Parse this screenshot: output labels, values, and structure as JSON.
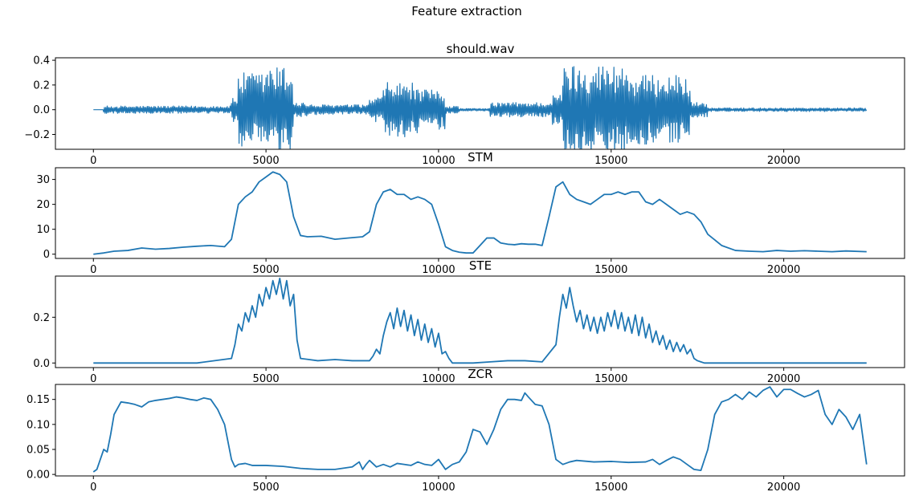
{
  "figure_title": "Feature extraction",
  "colors": {
    "line": "#1f77b4",
    "axis": "#000000",
    "background": "#ffffff"
  },
  "chart_data": [
    {
      "type": "line",
      "title": "should.wav",
      "xlabel": "",
      "ylabel": "",
      "xlim": [
        -1100,
        23500
      ],
      "ylim": [
        -0.32,
        0.42
      ],
      "xticks": [
        0,
        5000,
        10000,
        15000,
        20000
      ],
      "yticks": [
        -0.2,
        0.0,
        0.2,
        0.4
      ],
      "ytick_labels": [
        "−0.2",
        "0.0",
        "0.2",
        "0.4"
      ],
      "grid": false,
      "legend": "none",
      "series": [
        {
          "kind": "waveform",
          "x_range": [
            0,
            22400
          ],
          "segments": [
            {
              "x": [
                0,
                300
              ],
              "amp": 0.0
            },
            {
              "x": [
                300,
                4000
              ],
              "amp": 0.03
            },
            {
              "x": [
                4000,
                4200
              ],
              "amp": 0.1
            },
            {
              "x": [
                4200,
                5000
              ],
              "amp": 0.3
            },
            {
              "x": [
                5000,
                5800
              ],
              "amp": 0.35
            },
            {
              "x": [
                5800,
                6200
              ],
              "amp": 0.06
            },
            {
              "x": [
                6200,
                8000
              ],
              "amp": 0.04
            },
            {
              "x": [
                8000,
                8400
              ],
              "amp": 0.1
            },
            {
              "x": [
                8400,
                9400
              ],
              "amp": 0.22
            },
            {
              "x": [
                9400,
                10200
              ],
              "amp": 0.16
            },
            {
              "x": [
                10200,
                10600
              ],
              "amp": 0.03
            },
            {
              "x": [
                10600,
                11500
              ],
              "amp": 0.01
            },
            {
              "x": [
                11500,
                13300
              ],
              "amp": 0.06
            },
            {
              "x": [
                13300,
                13600
              ],
              "amp": 0.12
            },
            {
              "x": [
                13600,
                15500
              ],
              "amp": 0.37
            },
            {
              "x": [
                15500,
                17300
              ],
              "amp": 0.28
            },
            {
              "x": [
                17300,
                17800
              ],
              "amp": 0.06
            },
            {
              "x": [
                17800,
                22400
              ],
              "amp": 0.015
            }
          ]
        }
      ]
    },
    {
      "type": "line",
      "title": "STM",
      "xlabel": "",
      "ylabel": "",
      "xlim": [
        -1100,
        23500
      ],
      "ylim": [
        -1.7,
        34.7
      ],
      "xticks": [
        0,
        5000,
        10000,
        15000,
        20000
      ],
      "yticks": [
        0,
        10,
        20,
        30
      ],
      "ytick_labels": [
        "0",
        "10",
        "20",
        "30"
      ],
      "grid": false,
      "legend": "none",
      "series": [
        {
          "x": [
            0,
            300,
            600,
            1000,
            1400,
            1800,
            2200,
            2600,
            3000,
            3400,
            3800,
            4000,
            4200,
            4400,
            4600,
            4800,
            5000,
            5200,
            5400,
            5600,
            5800,
            6000,
            6200,
            6600,
            7000,
            7400,
            7800,
            8000,
            8200,
            8400,
            8600,
            8800,
            9000,
            9200,
            9400,
            9600,
            9800,
            10000,
            10200,
            10400,
            10600,
            10800,
            11000,
            11200,
            11400,
            11600,
            11800,
            12000,
            12200,
            12400,
            12600,
            12800,
            13000,
            13200,
            13400,
            13600,
            13800,
            14000,
            14200,
            14400,
            14600,
            14800,
            15000,
            15200,
            15400,
            15600,
            15800,
            16000,
            16200,
            16400,
            16600,
            16800,
            17000,
            17200,
            17400,
            17600,
            17800,
            18200,
            18600,
            19000,
            19400,
            19800,
            20200,
            20600,
            21000,
            21400,
            21800,
            22400
          ],
          "y": [
            0,
            0.5,
            1.2,
            1.5,
            2.5,
            2.0,
            2.3,
            2.8,
            3.2,
            3.5,
            3.0,
            6,
            20,
            23,
            25,
            29,
            31,
            33,
            32,
            29,
            15,
            7.5,
            7,
            7.2,
            6,
            6.5,
            7,
            9,
            20,
            25,
            26,
            24,
            24,
            22,
            23,
            22,
            20,
            12,
            3,
            1.5,
            0.8,
            0.5,
            0.5,
            3.5,
            6.5,
            6.5,
            4.5,
            4.0,
            3.8,
            4.2,
            4.0,
            4.0,
            3.5,
            15,
            27,
            29,
            24,
            22,
            21,
            20,
            22,
            24,
            24,
            25,
            24,
            25,
            25,
            21,
            20,
            22,
            20,
            18,
            16,
            17,
            16,
            13,
            8,
            3.5,
            1.5,
            1.2,
            1.0,
            1.5,
            1.2,
            1.4,
            1.2,
            1.0,
            1.3,
            1.0
          ]
        }
      ]
    },
    {
      "type": "line",
      "title": "STE",
      "xlabel": "",
      "ylabel": "",
      "xlim": [
        -1100,
        23500
      ],
      "ylim": [
        -0.02,
        0.38
      ],
      "xticks": [
        0,
        5000,
        10000,
        15000,
        20000
      ],
      "yticks": [
        0.0,
        0.2
      ],
      "ytick_labels": [
        "0.0",
        "0.2"
      ],
      "grid": false,
      "legend": "none",
      "series": [
        {
          "x": [
            0,
            1000,
            2000,
            3000,
            4000,
            4100,
            4200,
            4300,
            4400,
            4500,
            4600,
            4700,
            4800,
            4900,
            5000,
            5100,
            5200,
            5300,
            5400,
            5500,
            5600,
            5700,
            5800,
            5900,
            6000,
            6500,
            7000,
            7500,
            8000,
            8100,
            8200,
            8300,
            8400,
            8500,
            8600,
            8700,
            8800,
            8900,
            9000,
            9100,
            9200,
            9300,
            9400,
            9500,
            9600,
            9700,
            9800,
            9900,
            10000,
            10100,
            10200,
            10300,
            10400,
            10600,
            11000,
            11500,
            12000,
            12500,
            13000,
            13400,
            13500,
            13600,
            13700,
            13800,
            13900,
            14000,
            14100,
            14200,
            14300,
            14400,
            14500,
            14600,
            14700,
            14800,
            14900,
            15000,
            15100,
            15200,
            15300,
            15400,
            15500,
            15600,
            15700,
            15800,
            15900,
            16000,
            16100,
            16200,
            16300,
            16400,
            16500,
            16600,
            16700,
            16800,
            16900,
            17000,
            17100,
            17200,
            17300,
            17400,
            17500,
            17600,
            17700,
            17800,
            18500,
            19500,
            20500,
            21500,
            22400
          ],
          "y": [
            0.0,
            0.0,
            0.0,
            0.0,
            0.02,
            0.08,
            0.17,
            0.14,
            0.22,
            0.18,
            0.25,
            0.2,
            0.3,
            0.25,
            0.33,
            0.28,
            0.36,
            0.3,
            0.37,
            0.28,
            0.36,
            0.25,
            0.3,
            0.1,
            0.02,
            0.01,
            0.015,
            0.01,
            0.01,
            0.03,
            0.06,
            0.04,
            0.12,
            0.18,
            0.22,
            0.15,
            0.24,
            0.16,
            0.23,
            0.14,
            0.21,
            0.12,
            0.19,
            0.1,
            0.17,
            0.09,
            0.15,
            0.07,
            0.13,
            0.04,
            0.05,
            0.02,
            0.0,
            0.0,
            0.0,
            0.005,
            0.01,
            0.01,
            0.005,
            0.08,
            0.2,
            0.3,
            0.24,
            0.33,
            0.25,
            0.18,
            0.23,
            0.15,
            0.21,
            0.14,
            0.2,
            0.13,
            0.2,
            0.14,
            0.22,
            0.16,
            0.23,
            0.15,
            0.22,
            0.14,
            0.2,
            0.13,
            0.21,
            0.12,
            0.2,
            0.11,
            0.17,
            0.09,
            0.14,
            0.08,
            0.12,
            0.06,
            0.1,
            0.05,
            0.09,
            0.05,
            0.08,
            0.04,
            0.06,
            0.02,
            0.01,
            0.005,
            0.0,
            0.0,
            0.0,
            0.0,
            0.0,
            0.0,
            0.0
          ]
        }
      ]
    },
    {
      "type": "line",
      "title": "ZCR",
      "xlabel": "",
      "ylabel": "",
      "xlim": [
        -1100,
        23500
      ],
      "ylim": [
        -0.003,
        0.18
      ],
      "xticks": [
        0,
        5000,
        10000,
        15000,
        20000
      ],
      "yticks": [
        0.0,
        0.05,
        0.1,
        0.15
      ],
      "ytick_labels": [
        "0.00",
        "0.05",
        "0.10",
        "0.15"
      ],
      "grid": false,
      "legend": "none",
      "series": [
        {
          "x": [
            0,
            100,
            200,
            300,
            400,
            500,
            600,
            800,
            1000,
            1200,
            1400,
            1600,
            1800,
            2000,
            2200,
            2400,
            2600,
            2800,
            3000,
            3200,
            3400,
            3600,
            3800,
            4000,
            4100,
            4200,
            4400,
            4600,
            5000,
            5500,
            6000,
            6500,
            7000,
            7500,
            7700,
            7800,
            7900,
            8000,
            8200,
            8400,
            8600,
            8800,
            9000,
            9200,
            9400,
            9600,
            9800,
            10000,
            10200,
            10400,
            10600,
            10800,
            11000,
            11200,
            11400,
            11600,
            11800,
            12000,
            12200,
            12400,
            12500,
            12600,
            12800,
            13000,
            13200,
            13400,
            13600,
            13800,
            14000,
            14500,
            15000,
            15500,
            16000,
            16200,
            16400,
            16600,
            16800,
            17000,
            17200,
            17400,
            17600,
            17800,
            18000,
            18200,
            18400,
            18600,
            18800,
            19000,
            19200,
            19400,
            19600,
            19800,
            20000,
            20200,
            20400,
            20600,
            20800,
            21000,
            21200,
            21400,
            21600,
            21800,
            22000,
            22200,
            22400
          ],
          "y": [
            0.005,
            0.01,
            0.03,
            0.05,
            0.045,
            0.08,
            0.12,
            0.145,
            0.143,
            0.14,
            0.135,
            0.145,
            0.148,
            0.15,
            0.152,
            0.155,
            0.153,
            0.15,
            0.148,
            0.153,
            0.15,
            0.13,
            0.1,
            0.03,
            0.015,
            0.02,
            0.022,
            0.018,
            0.018,
            0.016,
            0.012,
            0.01,
            0.01,
            0.015,
            0.025,
            0.01,
            0.02,
            0.028,
            0.015,
            0.02,
            0.015,
            0.022,
            0.02,
            0.018,
            0.025,
            0.02,
            0.018,
            0.03,
            0.01,
            0.02,
            0.025,
            0.045,
            0.09,
            0.085,
            0.06,
            0.09,
            0.13,
            0.15,
            0.15,
            0.148,
            0.163,
            0.155,
            0.14,
            0.137,
            0.1,
            0.03,
            0.02,
            0.025,
            0.028,
            0.025,
            0.026,
            0.024,
            0.025,
            0.03,
            0.02,
            0.028,
            0.035,
            0.03,
            0.02,
            0.01,
            0.008,
            0.05,
            0.12,
            0.145,
            0.15,
            0.16,
            0.15,
            0.165,
            0.155,
            0.168,
            0.175,
            0.155,
            0.17,
            0.17,
            0.162,
            0.155,
            0.16,
            0.168,
            0.12,
            0.1,
            0.13,
            0.115,
            0.09,
            0.12,
            0.02
          ]
        }
      ]
    }
  ]
}
